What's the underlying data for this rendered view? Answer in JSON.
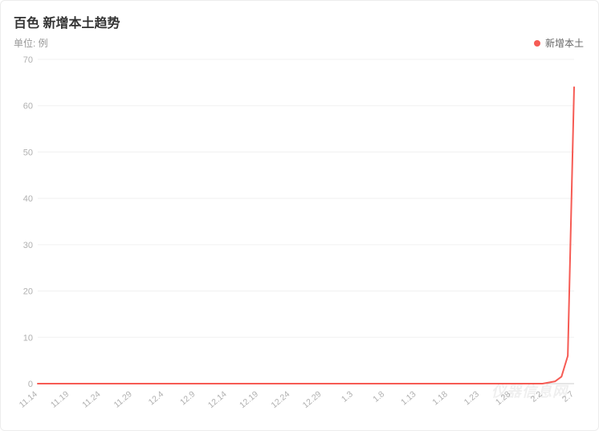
{
  "chart": {
    "type": "line",
    "title": "百色 新增本土趋势",
    "unit_label": "单位: 例",
    "title_fontsize": 16,
    "title_color": "#333333",
    "unit_color": "#999999",
    "unit_fontsize": 12,
    "background_color": "#ffffff",
    "border_color": "#ececec",
    "grid_color": "#f0f0f0",
    "baseline_color": "#cccccc",
    "tick_label_color": "#b0b0b0",
    "tick_fontsize": 11,
    "legend": {
      "items": [
        {
          "label": "新增本土",
          "color": "#f65b54"
        }
      ],
      "position": "top-right",
      "fontsize": 12,
      "text_color": "#666666"
    },
    "y_axis": {
      "min": 0,
      "max": 70,
      "tick_step": 10,
      "ticks": [
        0,
        10,
        20,
        30,
        40,
        50,
        60,
        70
      ]
    },
    "x_axis": {
      "labels": [
        "11.14",
        "11.19",
        "11.24",
        "11.29",
        "12.4",
        "12.9",
        "12.14",
        "12.19",
        "12.24",
        "12.29",
        "1.3",
        "1.8",
        "1.13",
        "1.18",
        "1.23",
        "1.28",
        "2.2",
        "2.7"
      ],
      "label_rotation": -40
    },
    "series": [
      {
        "name": "新增本土",
        "color": "#f65b54",
        "line_width": 2,
        "x": [
          "11.14",
          "11.19",
          "11.24",
          "11.29",
          "12.4",
          "12.9",
          "12.14",
          "12.19",
          "12.24",
          "12.29",
          "1.3",
          "1.8",
          "1.13",
          "1.18",
          "1.23",
          "1.28",
          "2.2",
          "2.4",
          "2.5",
          "2.6",
          "2.7"
        ],
        "y": [
          0,
          0,
          0,
          0,
          0,
          0,
          0,
          0,
          0,
          0,
          0,
          0,
          0,
          0,
          0,
          0,
          0,
          0.5,
          1.5,
          6,
          64
        ]
      }
    ],
    "watermark": "仪器信息网"
  }
}
